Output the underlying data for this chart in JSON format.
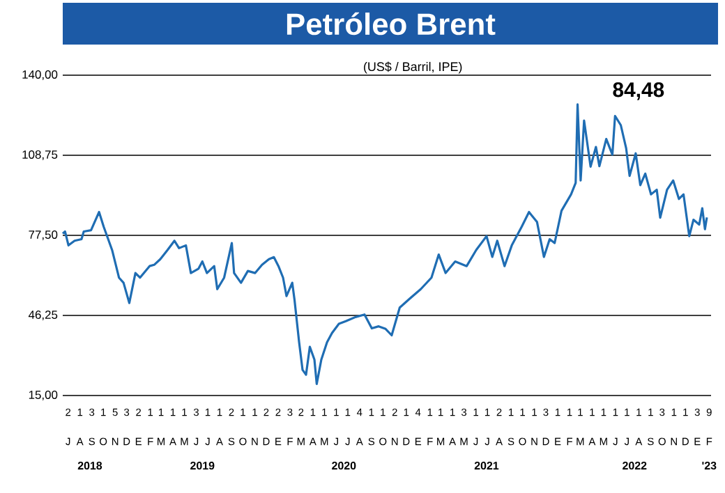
{
  "chart_data": {
    "type": "line",
    "title": "Petróleo Brent",
    "subtitle": "(US$ / Barril, IPE)",
    "x": [
      "2018-07-01",
      "2018-07-07",
      "2018-07-16",
      "2018-08-01",
      "2018-08-19",
      "2018-08-25",
      "2018-09-13",
      "2018-09-25",
      "2018-10-04",
      "2018-10-16",
      "2018-11-07",
      "2018-11-25",
      "2018-12-07",
      "2018-12-22",
      "2019-01-07",
      "2019-01-19",
      "2019-02-13",
      "2019-02-25",
      "2019-03-13",
      "2019-04-01",
      "2019-04-19",
      "2019-05-01",
      "2019-05-19",
      "2019-06-01",
      "2019-06-21",
      "2019-07-01",
      "2019-07-13",
      "2019-08-01",
      "2019-08-09",
      "2019-08-27",
      "2019-09-16",
      "2019-09-22",
      "2019-10-10",
      "2019-10-28",
      "2019-11-16",
      "2019-12-04",
      "2019-12-22",
      "2020-01-04",
      "2020-01-16",
      "2020-01-28",
      "2020-02-06",
      "2020-02-21",
      "2020-02-27",
      "2020-03-10",
      "2020-03-19",
      "2020-03-28",
      "2020-04-07",
      "2020-04-19",
      "2020-04-25",
      "2020-05-07",
      "2020-05-22",
      "2020-06-04",
      "2020-06-22",
      "2020-07-10",
      "2020-08-04",
      "2020-08-28",
      "2020-09-16",
      "2020-10-04",
      "2020-10-22",
      "2020-11-07",
      "2020-11-28",
      "2020-12-25",
      "2021-01-22",
      "2021-02-19",
      "2021-03-10",
      "2021-03-28",
      "2021-04-22",
      "2021-05-22",
      "2021-06-16",
      "2021-07-13",
      "2021-07-28",
      "2021-08-10",
      "2021-08-29",
      "2021-09-17",
      "2021-10-13",
      "2021-11-01",
      "2021-11-22",
      "2021-12-10",
      "2021-12-25",
      "2022-01-07",
      "2022-01-25",
      "2022-02-19",
      "2022-03-03",
      "2022-03-08",
      "2022-03-16",
      "2022-03-25",
      "2022-04-11",
      "2022-04-25",
      "2022-05-04",
      "2022-05-22",
      "2022-06-07",
      "2022-06-14",
      "2022-06-29",
      "2022-07-13",
      "2022-07-22",
      "2022-08-07",
      "2022-08-19",
      "2022-09-01",
      "2022-09-16",
      "2022-10-01",
      "2022-10-10",
      "2022-10-28",
      "2022-11-13",
      "2022-11-28",
      "2022-12-10",
      "2022-12-25",
      "2023-01-05",
      "2023-01-20",
      "2023-01-28",
      "2023-02-04",
      "2023-02-09"
    ],
    "series": [
      {
        "color": "#1f6db3",
        "values": [
          78.2,
          79,
          73.6,
          75.4,
          76,
          79,
          79.5,
          83.6,
          86.6,
          80.9,
          71.8,
          61,
          59,
          51.1,
          62.8,
          61,
          65.5,
          66,
          68.2,
          71.8,
          75.4,
          72.5,
          73.6,
          62.8,
          64.5,
          67.3,
          62.8,
          65.5,
          56.5,
          61,
          74.5,
          62.8,
          59,
          63.6,
          62.8,
          66,
          68.2,
          69,
          65.5,
          61,
          53.8,
          59,
          52.3,
          35.8,
          25,
          23.1,
          34,
          29,
          19.5,
          29,
          35.8,
          39.4,
          43,
          44,
          45.6,
          46.6,
          41.2,
          42,
          41,
          38.5,
          49.3,
          52.9,
          56.5,
          61,
          70,
          62.8,
          67.3,
          65.5,
          71.8,
          77.2,
          69.1,
          75.4,
          65.5,
          73.6,
          80.9,
          86.6,
          82.7,
          69.1,
          76,
          74.5,
          87.1,
          93.5,
          98,
          128.6,
          98.9,
          122.3,
          104.3,
          112,
          104.5,
          115.1,
          109,
          124.1,
          120.5,
          111.5,
          100.7,
          109.5,
          97.1,
          101.6,
          93.5,
          95.3,
          84.4,
          95.3,
          98.9,
          91.7,
          93.5,
          77.2,
          83.6,
          81.7,
          88.1,
          79.9,
          84.5
        ]
      }
    ],
    "xlim": [
      "2018-07-01",
      "2023-02-20"
    ],
    "xticks": [
      {
        "value": "2018-09-10",
        "label": "2018"
      },
      {
        "value": "2019-07-01",
        "label": "2019"
      },
      {
        "value": "2020-07-05",
        "label": "2020"
      },
      {
        "value": "2021-07-13",
        "label": "2021"
      },
      {
        "value": "2022-08-04",
        "label": "2022"
      },
      {
        "value": "2023-02-15",
        "label": "'23"
      }
    ],
    "ylim": [
      15,
      140
    ],
    "yticks": [
      {
        "value": 15,
        "label": "15,00"
      },
      {
        "value": 46.25,
        "label": "46,25"
      },
      {
        "value": 77.5,
        "label": "77,50"
      },
      {
        "value": 108.75,
        "label": "108,75"
      },
      {
        "value": 140,
        "label": "140,00"
      }
    ],
    "grid": "y",
    "annotations": [
      "84,48",
      "2",
      "1",
      "3",
      "1",
      "5",
      "3",
      "2",
      "1",
      "1",
      "1",
      "1",
      "3",
      "1",
      "1",
      "2",
      "1",
      "1",
      "2",
      "2",
      "3",
      "2",
      "1",
      "1",
      "1",
      "1",
      "4",
      "1",
      "1",
      "2",
      "1",
      "4",
      "1",
      "1",
      "1",
      "3",
      "1",
      "1",
      "2",
      "1",
      "1",
      "1",
      "3",
      "1",
      "1",
      "1",
      "1",
      "1",
      "1",
      "1",
      "1",
      "1",
      "3",
      "1",
      "1",
      "3",
      "9",
      "J",
      "A",
      "S",
      "O",
      "N",
      "D",
      "E",
      "F",
      "M",
      "A",
      "M",
      "J",
      "J",
      "A",
      "S",
      "O",
      "N",
      "D",
      "E",
      "F",
      "M",
      "A",
      "M",
      "J",
      "J",
      "A",
      "S",
      "O",
      "N",
      "D",
      "E",
      "F",
      "M",
      "A",
      "M",
      "J",
      "J",
      "A",
      "S",
      "O",
      "N",
      "D",
      "E",
      "F",
      "M",
      "A",
      "M",
      "J",
      "J",
      "A",
      "S",
      "O",
      "N",
      "D",
      "E",
      "F"
    ]
  }
}
